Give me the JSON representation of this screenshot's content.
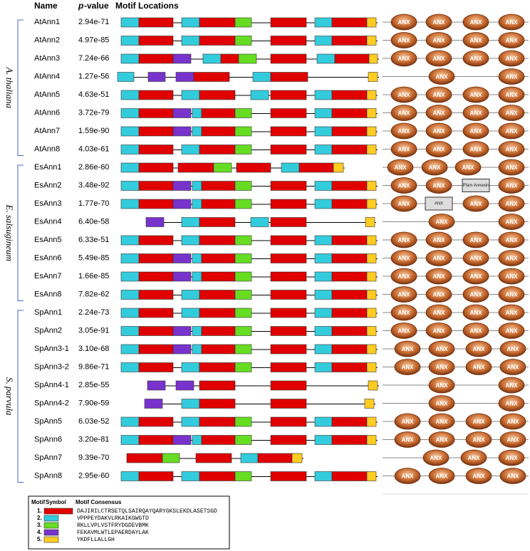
{
  "header": {
    "name": "Name",
    "p": "p",
    "value": "-value",
    "motifs": "Motif Locations"
  },
  "groups": [
    {
      "label": "A. thaliana",
      "rows": [
        {
          "name": "AtAnn1",
          "pvalue": "2.94e-71",
          "domains": [
            "ANX",
            "ANX",
            "ANX",
            "ANX"
          ]
        },
        {
          "name": "AtAnn2",
          "pvalue": "4.97e-85",
          "domains": [
            "ANX",
            "ANX",
            "ANX",
            "ANX"
          ]
        },
        {
          "name": "AtAnn3",
          "pvalue": "7.24e-66",
          "domains": [
            "ANX",
            "ANX",
            "ANX",
            "ANX"
          ]
        },
        {
          "name": "AtAnn4",
          "pvalue": "1.27e-56",
          "domains": [
            "ANX",
            "ANX"
          ]
        },
        {
          "name": "AtAnn5",
          "pvalue": "4.63e-51",
          "domains": [
            "ANX",
            "ANX",
            "ANX",
            "ANX"
          ]
        },
        {
          "name": "AtAnn6",
          "pvalue": "3.72e-79",
          "domains": [
            "ANX",
            "ANX",
            "ANX",
            "ANX"
          ]
        },
        {
          "name": "AtAnn7",
          "pvalue": "1.59e-90",
          "domains": [
            "ANX",
            "ANX",
            "ANX",
            "ANX"
          ]
        },
        {
          "name": "AtAnn8",
          "pvalue": "4.03e-61",
          "domains": [
            "ANX",
            "ANX",
            "ANX",
            "ANX"
          ]
        }
      ]
    },
    {
      "label": "E. salsugineum",
      "rows": [
        {
          "name": "EsAnn1",
          "pvalue": "2.86e-60",
          "domains": [
            "ANX",
            "ANX",
            "ANX",
            "ANX"
          ]
        },
        {
          "name": "EsAnn2",
          "pvalue": "3.48e-92",
          "domains": [
            "ANX",
            "ANX",
            "Pfam Annexin",
            "ANX"
          ]
        },
        {
          "name": "EsAnn3",
          "pvalue": "1.77e-70",
          "domains": [
            "ANX",
            "ANX",
            "ANX",
            "ANX"
          ]
        },
        {
          "name": "EsAnn4",
          "pvalue": "6.40e-58",
          "domains": [
            "ANX",
            "ANX"
          ]
        },
        {
          "name": "EsAnn5",
          "pvalue": "6.33e-51",
          "domains": [
            "ANX",
            "ANX",
            "ANX",
            "ANX"
          ]
        },
        {
          "name": "EsAnn6",
          "pvalue": "5.49e-85",
          "domains": [
            "ANX",
            "ANX",
            "ANX",
            "ANX"
          ]
        },
        {
          "name": "EsAnn7",
          "pvalue": "1.66e-85",
          "domains": [
            "ANX",
            "ANX",
            "ANX",
            "ANX"
          ]
        },
        {
          "name": "EsAnn8",
          "pvalue": "7.82e-62",
          "domains": [
            "ANX",
            "ANX",
            "ANX",
            "ANX"
          ]
        }
      ]
    },
    {
      "label": "S. parvula",
      "rows": [
        {
          "name": "SpAnn1",
          "pvalue": "2.24e-73",
          "domains": [
            "ANX",
            "ANX",
            "ANX",
            "ANX"
          ]
        },
        {
          "name": "SpAnn2",
          "pvalue": "3.05e-91",
          "domains": [
            "ANX",
            "ANX",
            "ANX",
            "ANX"
          ]
        },
        {
          "name": "SpAnn3-1",
          "pvalue": "3.10e-68",
          "domains": [
            "ANX",
            "ANX",
            "ANX",
            "ANX"
          ]
        },
        {
          "name": "SpAnn3-2",
          "pvalue": "9.86e-71",
          "domains": [
            "ANX",
            "ANX",
            "ANX",
            "ANX"
          ]
        },
        {
          "name": "SpAnn4-1",
          "pvalue": "2.85e-55",
          "domains": [
            "ANX",
            "ANX"
          ]
        },
        {
          "name": "SpAnn4-2",
          "pvalue": "7.90e-59",
          "domains": [
            "ANX",
            "ANX"
          ]
        },
        {
          "name": "SpAnn5",
          "pvalue": "6.03e-52",
          "domains": [
            "ANX",
            "ANX",
            "ANX",
            "ANX"
          ]
        },
        {
          "name": "SpAnn6",
          "pvalue": "3.20e-81",
          "domains": [
            "ANX",
            "ANX",
            "ANX",
            "ANX"
          ]
        },
        {
          "name": "SpAnn7",
          "pvalue": "9.39e-70",
          "domains": [
            "ANX",
            "ANX",
            "ANX"
          ]
        },
        {
          "name": "SpAnn8",
          "pvalue": "2.95e-60",
          "domains": [
            "ANX",
            "ANX",
            "ANX",
            "ANX"
          ]
        }
      ]
    }
  ],
  "legend": {
    "headers": [
      "Motif",
      "Symbol",
      "Motif Consensus"
    ],
    "rows": [
      {
        "motif": "1.",
        "consensus": "DAJIRILCTRSETQLSAIRQAYQARYGKSLEKDLASETSGD"
      },
      {
        "motif": "2.",
        "consensus": "VPPPEYDAKVLRKAIKGWGTD"
      },
      {
        "motif": "3.",
        "consensus": "RKLLVPLVSTFRYDGDEVBMK"
      },
      {
        "motif": "4.",
        "consensus": "FEKAVMLWTLEPAERDAYLAK"
      },
      {
        "motif": "5.",
        "consensus": "YKDFLLALLGH"
      }
    ]
  }
}
